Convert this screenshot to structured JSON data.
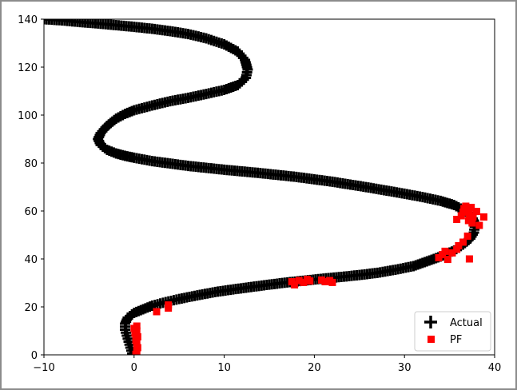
{
  "chart_data": {
    "type": "scatter",
    "xlim": [
      -10,
      40
    ],
    "ylim": [
      0,
      140
    ],
    "xticks": [
      -10,
      0,
      10,
      20,
      30,
      40
    ],
    "yticks": [
      0,
      20,
      40,
      60,
      80,
      100,
      120,
      140
    ],
    "legend_position": "bottom-right",
    "series": [
      {
        "name": "Actual",
        "marker": "plus",
        "color": "#000000",
        "points": [
          [
            -10.0,
            140.0
          ],
          [
            -8.0,
            139.5
          ],
          [
            -6.0,
            138.8
          ],
          [
            -4.0,
            138.2
          ],
          [
            -2.0,
            137.5
          ],
          [
            0.0,
            136.8
          ],
          [
            2.0,
            136.0
          ],
          [
            4.0,
            135.0
          ],
          [
            6.0,
            133.8
          ],
          [
            8.0,
            132.0
          ],
          [
            10.0,
            129.5
          ],
          [
            11.5,
            126.5
          ],
          [
            12.3,
            123.0
          ],
          [
            12.6,
            119.0
          ],
          [
            12.4,
            115.5
          ],
          [
            11.5,
            112.5
          ],
          [
            10.0,
            110.5
          ],
          [
            8.0,
            108.8
          ],
          [
            6.0,
            107.2
          ],
          [
            4.0,
            105.8
          ],
          [
            2.0,
            104.0
          ],
          [
            0.0,
            102.0
          ],
          [
            -1.0,
            100.5
          ],
          [
            -2.0,
            98.5
          ],
          [
            -3.0,
            95.5
          ],
          [
            -3.7,
            92.5
          ],
          [
            -4.0,
            90.0
          ],
          [
            -3.7,
            87.5
          ],
          [
            -3.0,
            85.5
          ],
          [
            -2.0,
            84.0
          ],
          [
            -1.0,
            83.0
          ],
          [
            0.0,
            82.2
          ],
          [
            2.0,
            80.8
          ],
          [
            4.0,
            79.8
          ],
          [
            6.0,
            78.8
          ],
          [
            8.0,
            78.0
          ],
          [
            10.0,
            77.2
          ],
          [
            12.0,
            76.5
          ],
          [
            14.0,
            75.8
          ],
          [
            16.0,
            75.0
          ],
          [
            18.0,
            74.2
          ],
          [
            20.0,
            73.2
          ],
          [
            22.0,
            72.2
          ],
          [
            24.0,
            71.0
          ],
          [
            26.0,
            69.8
          ],
          [
            28.0,
            68.5
          ],
          [
            30.0,
            67.2
          ],
          [
            32.0,
            65.8
          ],
          [
            34.0,
            64.2
          ],
          [
            35.5,
            62.5
          ],
          [
            36.5,
            60.5
          ],
          [
            37.3,
            58.5
          ],
          [
            37.7,
            56.0
          ],
          [
            37.8,
            53.5
          ],
          [
            37.7,
            51.0
          ],
          [
            37.3,
            48.5
          ],
          [
            36.5,
            46.0
          ],
          [
            35.5,
            43.5
          ],
          [
            34.0,
            41.0
          ],
          [
            32.5,
            39.0
          ],
          [
            31.0,
            37.0
          ],
          [
            29.0,
            35.5
          ],
          [
            27.0,
            34.2
          ],
          [
            25.0,
            33.3
          ],
          [
            23.0,
            32.5
          ],
          [
            21.0,
            31.8
          ],
          [
            19.0,
            31.0
          ],
          [
            17.0,
            30.2
          ],
          [
            15.0,
            29.3
          ],
          [
            13.0,
            28.3
          ],
          [
            11.0,
            27.3
          ],
          [
            9.0,
            26.2
          ],
          [
            7.0,
            24.8
          ],
          [
            5.0,
            23.3
          ],
          [
            3.5,
            22.0
          ],
          [
            2.0,
            20.5
          ],
          [
            1.0,
            19.0
          ],
          [
            0.0,
            17.5
          ],
          [
            -0.7,
            15.5
          ],
          [
            -1.0,
            13.0
          ],
          [
            -1.0,
            10.5
          ],
          [
            -0.8,
            8.0
          ],
          [
            -0.6,
            5.5
          ],
          [
            -0.4,
            3.0
          ],
          [
            -0.2,
            0.5
          ]
        ]
      },
      {
        "name": "PF",
        "marker": "square",
        "color": "#ff0000",
        "points": [
          [
            0.2,
            0.2
          ],
          [
            0.3,
            1.5
          ],
          [
            0.4,
            3.0
          ],
          [
            0.3,
            4.5
          ],
          [
            0.2,
            6.0
          ],
          [
            0.4,
            7.5
          ],
          [
            0.1,
            9.0
          ],
          [
            0.3,
            10.0
          ],
          [
            0.0,
            11.0
          ],
          [
            0.3,
            12.0
          ],
          [
            2.5,
            18.0
          ],
          [
            3.8,
            19.5
          ],
          [
            3.8,
            20.8
          ],
          [
            17.5,
            30.5
          ],
          [
            17.8,
            29.2
          ],
          [
            18.3,
            31.0
          ],
          [
            18.8,
            30.2
          ],
          [
            19.2,
            31.5
          ],
          [
            19.5,
            30.8
          ],
          [
            20.8,
            31.2
          ],
          [
            21.2,
            30.5
          ],
          [
            21.7,
            31.0
          ],
          [
            22.0,
            30.2
          ],
          [
            33.8,
            40.5
          ],
          [
            34.2,
            41.8
          ],
          [
            34.5,
            43.2
          ],
          [
            34.8,
            39.8
          ],
          [
            35.3,
            42.5
          ],
          [
            35.8,
            44.0
          ],
          [
            36.0,
            45.5
          ],
          [
            36.5,
            47.0
          ],
          [
            37.2,
            40.0
          ],
          [
            37.0,
            49.5
          ],
          [
            35.8,
            56.5
          ],
          [
            36.3,
            58.0
          ],
          [
            36.5,
            59.5
          ],
          [
            36.6,
            61.0
          ],
          [
            36.8,
            62.0
          ],
          [
            37.0,
            60.5
          ],
          [
            37.2,
            59.0
          ],
          [
            37.4,
            61.5
          ],
          [
            37.6,
            57.5
          ],
          [
            37.1,
            56.0
          ],
          [
            37.5,
            55.0
          ],
          [
            38.0,
            59.8
          ],
          [
            38.3,
            54.0
          ],
          [
            38.8,
            57.5
          ]
        ]
      }
    ]
  }
}
